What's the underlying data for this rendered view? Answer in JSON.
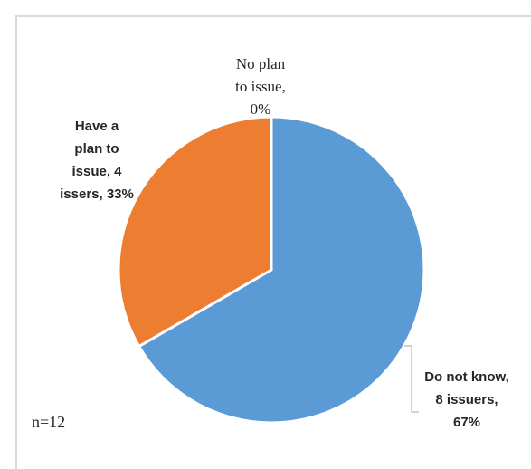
{
  "chart_data": {
    "type": "pie",
    "slices": [
      {
        "category": "No plan to issue",
        "value": 0,
        "lines": [
          "No plan",
          "to issue,",
          "0%"
        ],
        "color": "#ffc000"
      },
      {
        "category": "Do not know",
        "value": 8,
        "lines": [
          "Do not know,",
          "8 issuers,",
          "67%"
        ],
        "color": "#5b9bd5"
      },
      {
        "category": "Have a plan to issue",
        "value": 4,
        "lines": [
          "Have a",
          "plan to",
          "issue, 4",
          "issers, 33%"
        ],
        "color": "#ed7d31"
      }
    ],
    "note": "n=12"
  }
}
